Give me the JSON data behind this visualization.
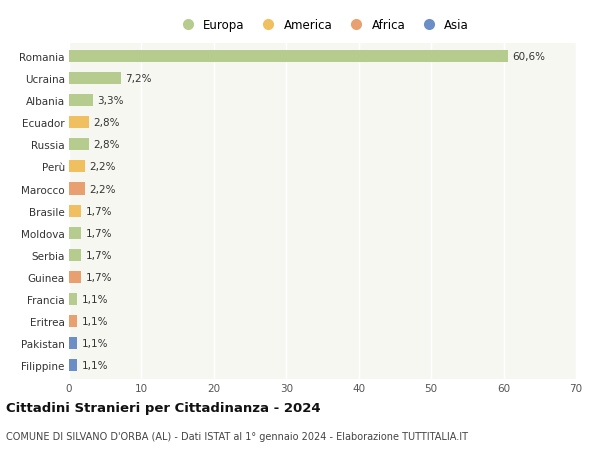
{
  "countries": [
    "Romania",
    "Ucraina",
    "Albania",
    "Ecuador",
    "Russia",
    "Perù",
    "Marocco",
    "Brasile",
    "Moldova",
    "Serbia",
    "Guinea",
    "Francia",
    "Eritrea",
    "Pakistan",
    "Filippine"
  ],
  "values": [
    60.6,
    7.2,
    3.3,
    2.8,
    2.8,
    2.2,
    2.2,
    1.7,
    1.7,
    1.7,
    1.7,
    1.1,
    1.1,
    1.1,
    1.1
  ],
  "labels": [
    "60,6%",
    "7,2%",
    "3,3%",
    "2,8%",
    "2,8%",
    "2,2%",
    "2,2%",
    "1,7%",
    "1,7%",
    "1,7%",
    "1,7%",
    "1,1%",
    "1,1%",
    "1,1%",
    "1,1%"
  ],
  "regions": [
    "Europa",
    "Europa",
    "Europa",
    "America",
    "Europa",
    "America",
    "Africa",
    "America",
    "Europa",
    "Europa",
    "Africa",
    "Europa",
    "Africa",
    "Asia",
    "Asia"
  ],
  "region_colors": {
    "Europa": "#b5cc8e",
    "America": "#f0c060",
    "Africa": "#e8a070",
    "Asia": "#6b8ec7"
  },
  "legend_order": [
    "Europa",
    "America",
    "Africa",
    "Asia"
  ],
  "xlim": [
    0,
    70
  ],
  "xticks": [
    0,
    10,
    20,
    30,
    40,
    50,
    60,
    70
  ],
  "title": "Cittadini Stranieri per Cittadinanza - 2024",
  "subtitle": "COMUNE DI SILVANO D'ORBA (AL) - Dati ISTAT al 1° gennaio 2024 - Elaborazione TUTTITALIA.IT",
  "bg_color": "#f7f7f2",
  "bar_height": 0.55,
  "grid_color": "#ffffff",
  "label_fontsize": 7.5,
  "ytick_fontsize": 7.5,
  "xtick_fontsize": 7.5,
  "title_fontsize": 9.5,
  "subtitle_fontsize": 7.0,
  "legend_fontsize": 8.5
}
